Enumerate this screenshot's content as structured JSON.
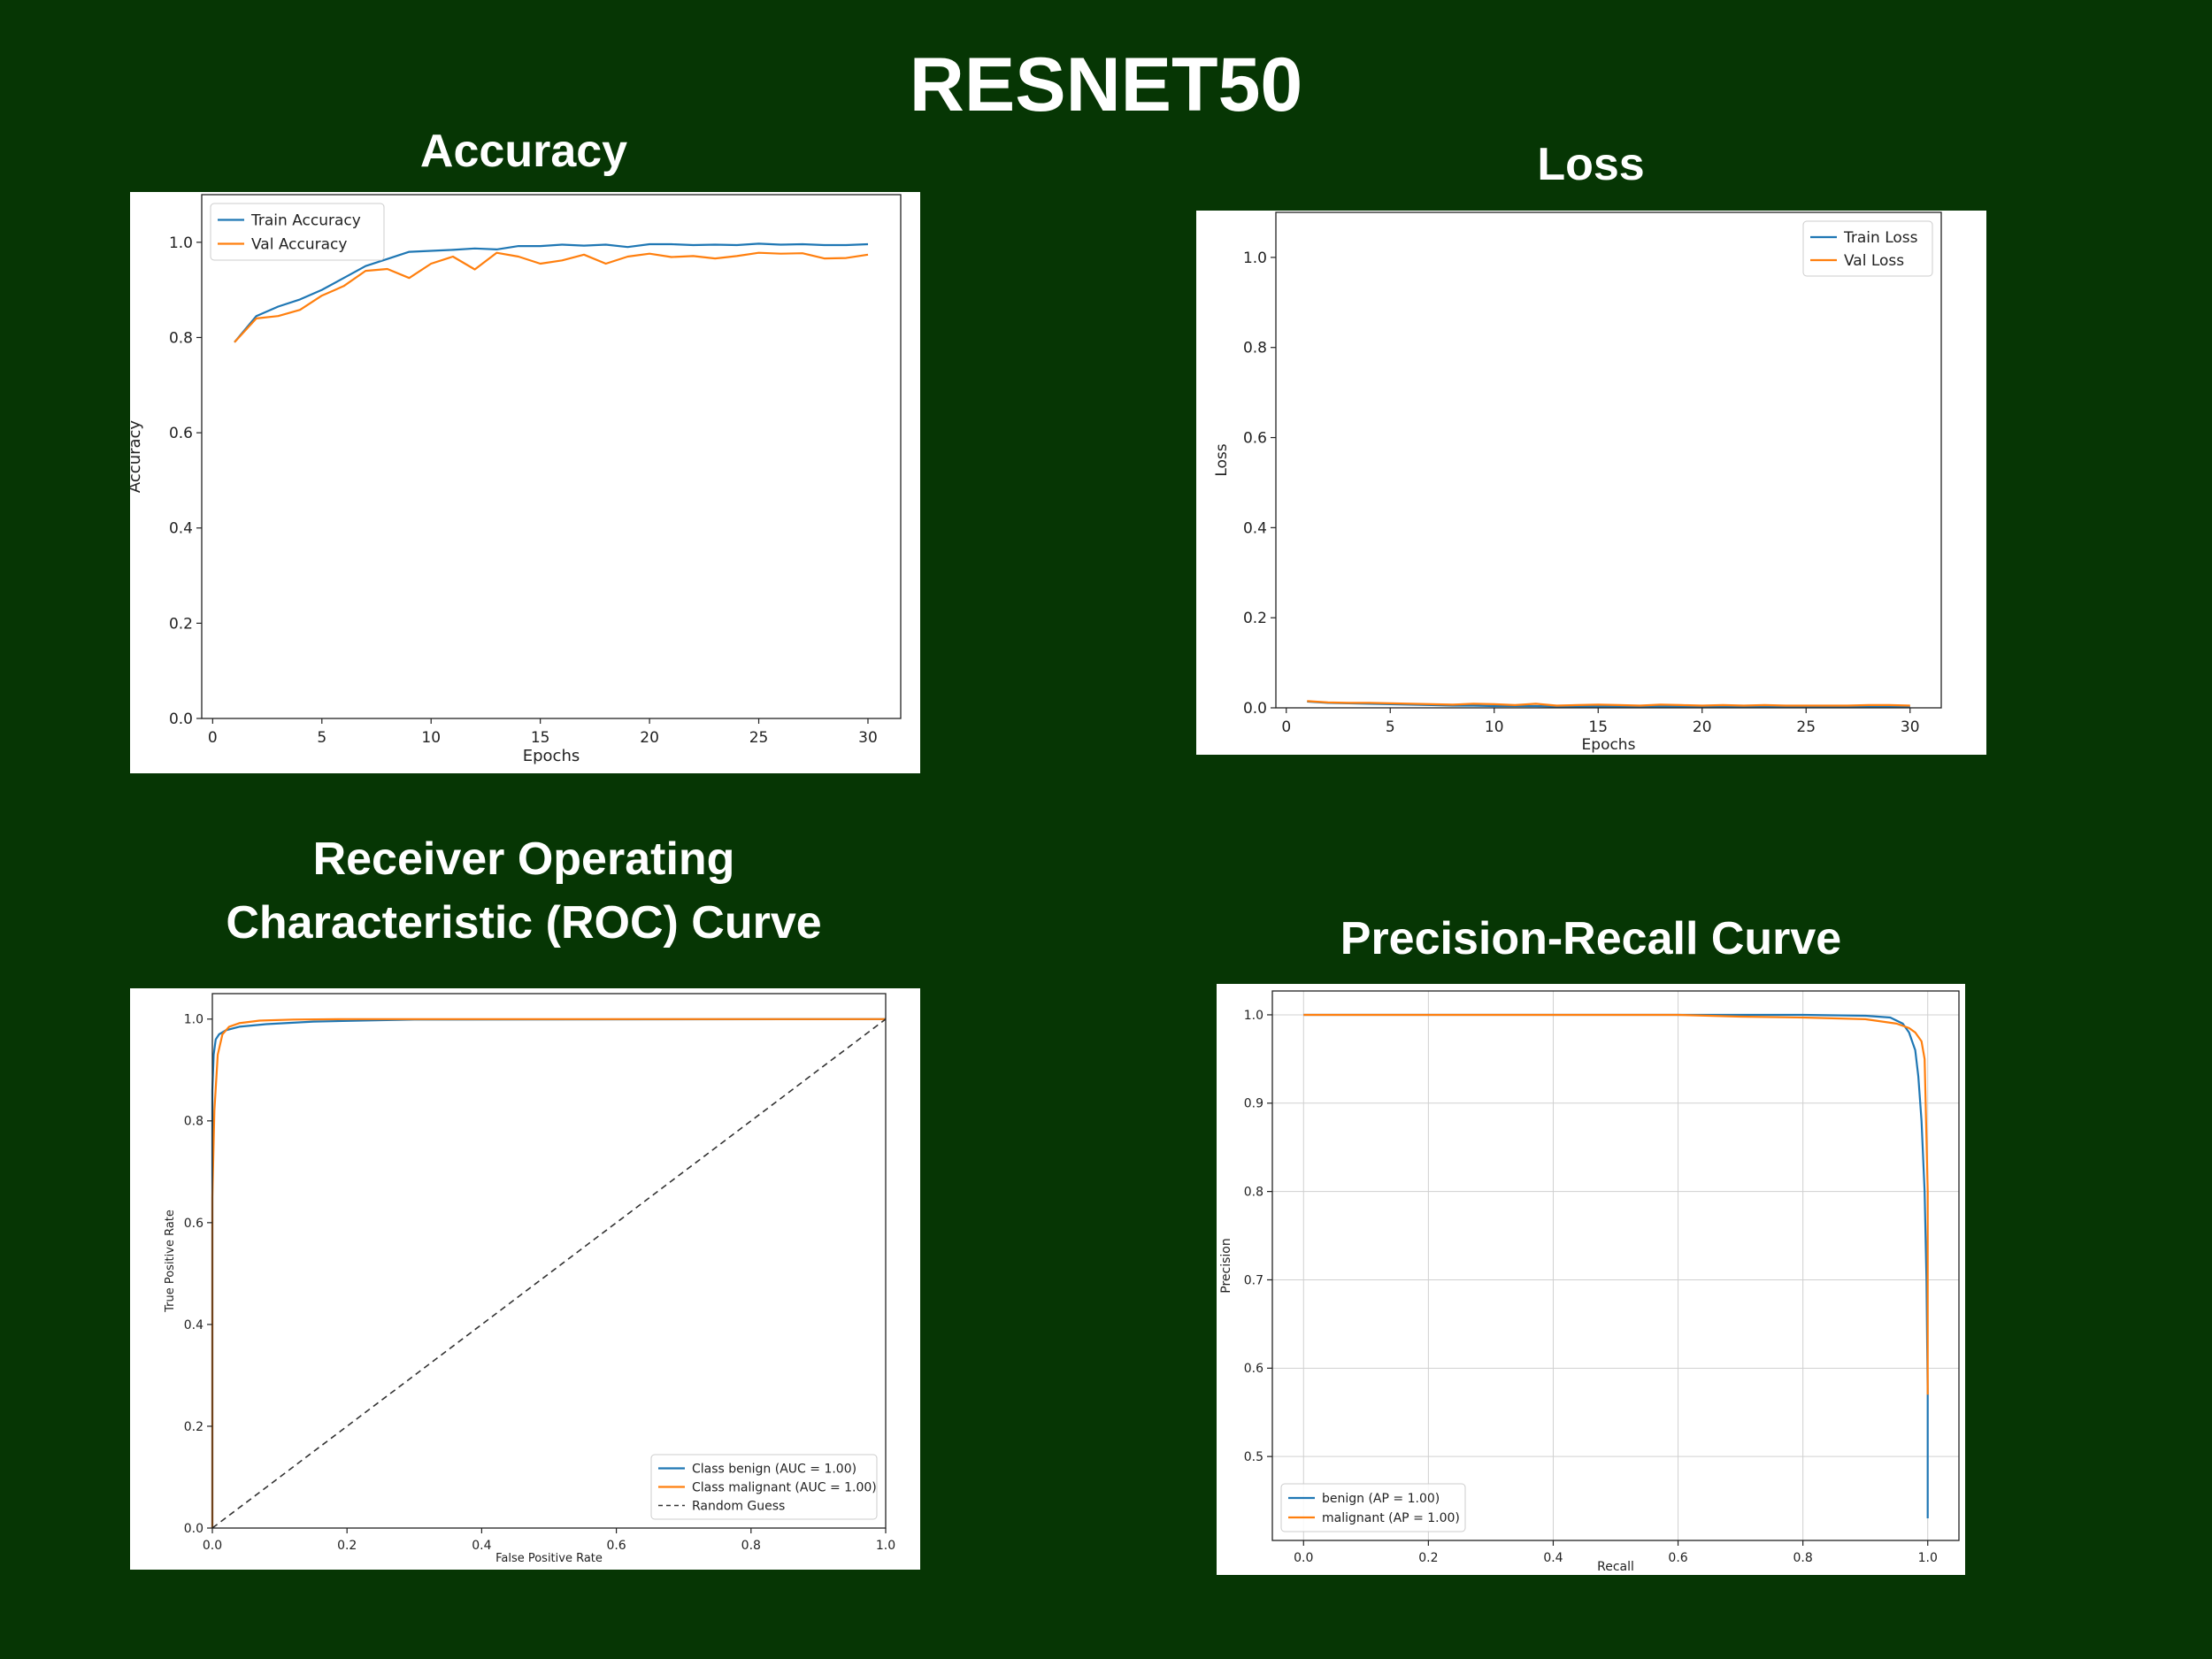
{
  "slide": {
    "title": "RESNET50",
    "background": "#063604"
  },
  "panel_titles": {
    "accuracy": "Accuracy",
    "loss": "Loss",
    "roc_line1": "Receiver Operating",
    "roc_line2": "Characteristic (ROC) Curve",
    "pr": "Precision-Recall Curve"
  },
  "colors": {
    "series_1": "#1f77b4",
    "series_2": "#ff7f0e",
    "diagonal": "#333333",
    "grid": "#d0d0d0"
  },
  "chart_data": [
    {
      "id": "accuracy",
      "type": "line",
      "xlabel": "Epochs",
      "ylabel": "Accuracy",
      "xlim": [
        -0.5,
        31.5
      ],
      "ylim": [
        0.0,
        1.1
      ],
      "xticks": [
        0,
        5,
        10,
        15,
        20,
        25,
        30
      ],
      "yticks": [
        0.0,
        0.2,
        0.4,
        0.6,
        0.8,
        1.0
      ],
      "ytick_decimals": 1,
      "grid": false,
      "legend": "upper left",
      "x": [
        1,
        2,
        3,
        4,
        5,
        6,
        7,
        8,
        9,
        10,
        11,
        12,
        13,
        14,
        15,
        16,
        17,
        18,
        19,
        20,
        21,
        22,
        23,
        24,
        25,
        26,
        27,
        28,
        29,
        30
      ],
      "series": [
        {
          "name": "Train Accuracy",
          "color": "#1f77b4",
          "values": [
            0.79,
            0.845,
            0.865,
            0.88,
            0.9,
            0.925,
            0.95,
            0.965,
            0.98,
            0.982,
            0.984,
            0.987,
            0.985,
            0.992,
            0.992,
            0.995,
            0.993,
            0.995,
            0.99,
            0.996,
            0.996,
            0.994,
            0.995,
            0.994,
            0.997,
            0.995,
            0.996,
            0.994,
            0.994,
            0.996
          ]
        },
        {
          "name": "Val Accuracy",
          "color": "#ff7f0e",
          "values": [
            0.79,
            0.84,
            0.845,
            0.858,
            0.888,
            0.908,
            0.94,
            0.944,
            0.925,
            0.955,
            0.97,
            0.943,
            0.978,
            0.97,
            0.955,
            0.962,
            0.974,
            0.955,
            0.97,
            0.976,
            0.969,
            0.971,
            0.966,
            0.971,
            0.978,
            0.976,
            0.977,
            0.966,
            0.967,
            0.974
          ]
        }
      ]
    },
    {
      "id": "loss",
      "type": "line",
      "xlabel": "Epochs",
      "ylabel": "Loss",
      "xlim": [
        -0.5,
        31.5
      ],
      "ylim": [
        0.0,
        1.1
      ],
      "xticks": [
        0,
        5,
        10,
        15,
        20,
        25,
        30
      ],
      "yticks": [
        0.0,
        0.2,
        0.4,
        0.6,
        0.8,
        1.0
      ],
      "ytick_decimals": 1,
      "grid": false,
      "legend": "upper right",
      "x": [
        1,
        2,
        3,
        4,
        5,
        6,
        7,
        8,
        9,
        10,
        11,
        12,
        13,
        14,
        15,
        16,
        17,
        18,
        19,
        20,
        21,
        22,
        23,
        24,
        25,
        26,
        27,
        28,
        29,
        30
      ],
      "series": [
        {
          "name": "Train Loss",
          "color": "#1f77b4",
          "values": [
            0.014,
            0.011,
            0.01,
            0.009,
            0.008,
            0.007,
            0.006,
            0.005,
            0.005,
            0.004,
            0.004,
            0.004,
            0.003,
            0.003,
            0.003,
            0.003,
            0.003,
            0.003,
            0.003,
            0.002,
            0.002,
            0.002,
            0.002,
            0.002,
            0.002,
            0.002,
            0.002,
            0.002,
            0.002,
            0.002
          ]
        },
        {
          "name": "Val Loss",
          "color": "#ff7f0e",
          "values": [
            0.015,
            0.012,
            0.011,
            0.011,
            0.01,
            0.009,
            0.008,
            0.007,
            0.009,
            0.008,
            0.006,
            0.009,
            0.005,
            0.006,
            0.007,
            0.006,
            0.005,
            0.007,
            0.006,
            0.005,
            0.006,
            0.005,
            0.006,
            0.005,
            0.005,
            0.005,
            0.005,
            0.006,
            0.006,
            0.005
          ]
        }
      ]
    },
    {
      "id": "roc",
      "type": "line",
      "xlabel": "False Positive Rate",
      "ylabel": "True Positive Rate",
      "xlim": [
        0.0,
        1.0
      ],
      "ylim": [
        0.0,
        1.05
      ],
      "xticks": [
        0.0,
        0.2,
        0.4,
        0.6,
        0.8,
        1.0
      ],
      "yticks": [
        0.0,
        0.2,
        0.4,
        0.6,
        0.8,
        1.0
      ],
      "ytick_decimals": 1,
      "grid": false,
      "legend": "lower right",
      "series": [
        {
          "name": "Class benign (AUC = 1.00)",
          "color": "#1f77b4",
          "x": [
            0.0,
            0.0,
            0.002,
            0.005,
            0.01,
            0.02,
            0.04,
            0.08,
            0.15,
            0.3,
            1.0
          ],
          "values": [
            0.0,
            0.86,
            0.93,
            0.96,
            0.97,
            0.978,
            0.985,
            0.99,
            0.995,
            0.999,
            1.0
          ]
        },
        {
          "name": "Class malignant (AUC = 1.00)",
          "color": "#ff7f0e",
          "x": [
            0.0,
            0.0,
            0.003,
            0.008,
            0.015,
            0.025,
            0.04,
            0.07,
            0.12,
            0.2,
            1.0
          ],
          "values": [
            0.0,
            0.65,
            0.82,
            0.93,
            0.97,
            0.985,
            0.992,
            0.997,
            0.999,
            1.0,
            1.0
          ]
        },
        {
          "name": "Random Guess",
          "color": "#333333",
          "dashed": true,
          "x": [
            0.0,
            1.0
          ],
          "values": [
            0.0,
            1.0
          ]
        }
      ]
    },
    {
      "id": "pr",
      "type": "line",
      "xlabel": "Recall",
      "ylabel": "Precision",
      "xlim": [
        -0.05,
        1.05
      ],
      "ylim": [
        0.405,
        1.027
      ],
      "xticks": [
        0.0,
        0.2,
        0.4,
        0.6,
        0.8,
        1.0
      ],
      "yticks": [
        0.5,
        0.6,
        0.7,
        0.8,
        0.9,
        1.0
      ],
      "ytick_decimals": 1,
      "grid": true,
      "legend": "lower left",
      "series": [
        {
          "name": "benign (AP = 1.00)",
          "color": "#1f77b4",
          "x": [
            0.0,
            0.2,
            0.4,
            0.6,
            0.8,
            0.9,
            0.94,
            0.96,
            0.97,
            0.98,
            0.985,
            0.99,
            0.995,
            0.998,
            1.0,
            1.0
          ],
          "values": [
            1.0,
            1.0,
            1.0,
            1.0,
            1.0,
            0.999,
            0.997,
            0.99,
            0.98,
            0.96,
            0.93,
            0.88,
            0.8,
            0.7,
            0.57,
            0.43
          ]
        },
        {
          "name": "malignant (AP = 1.00)",
          "color": "#ff7f0e",
          "x": [
            0.0,
            0.2,
            0.4,
            0.6,
            0.7,
            0.8,
            0.9,
            0.95,
            0.97,
            0.98,
            0.99,
            0.995,
            1.0,
            1.0
          ],
          "values": [
            1.0,
            1.0,
            1.0,
            1.0,
            0.998,
            0.997,
            0.995,
            0.99,
            0.985,
            0.98,
            0.97,
            0.95,
            0.8,
            0.57
          ]
        }
      ]
    }
  ]
}
